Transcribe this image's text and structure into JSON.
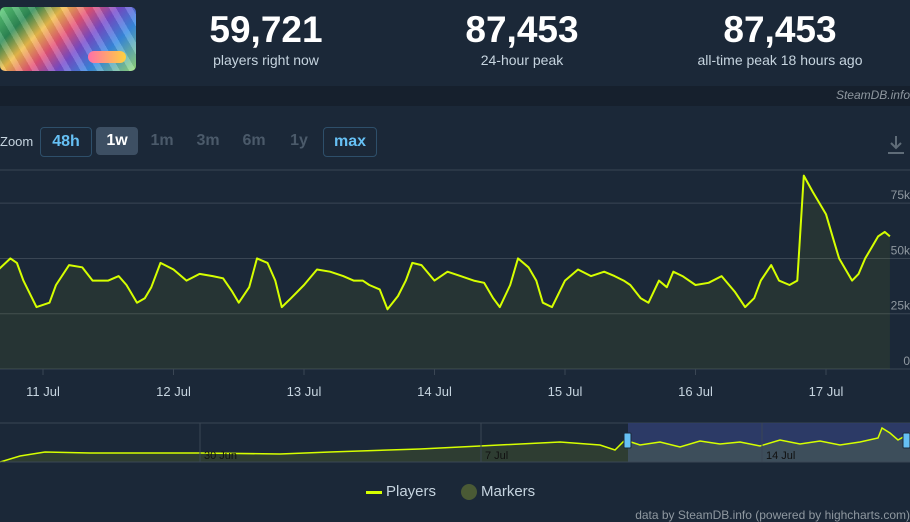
{
  "header": {
    "thumbnail_name": "game-capsule-image",
    "stats": [
      {
        "value": "59,721",
        "label": "players right now"
      },
      {
        "value": "87,453",
        "label": "24-hour peak"
      },
      {
        "value": "87,453",
        "label": "all-time peak 18 hours ago"
      }
    ]
  },
  "credit_top": "SteamDB.info",
  "zoom": {
    "label": "Zoom",
    "buttons": [
      "48h",
      "1w",
      "1m",
      "3m",
      "6m",
      "1y",
      "max"
    ],
    "active": "1w"
  },
  "download_icon": "download-icon",
  "colors": {
    "line": "#d6ff00",
    "grid": "#3a4654",
    "nav_selection": "#2f3c6b"
  },
  "chart_data": {
    "type": "line",
    "ylim": [
      0,
      90000
    ],
    "y_tick_labels": [
      "0",
      "25k",
      "50k",
      "75k"
    ],
    "x_tick_labels": [
      "11 Jul",
      "12 Jul",
      "13 Jul",
      "14 Jul",
      "15 Jul",
      "16 Jul",
      "17 Jul"
    ],
    "series": [
      {
        "name": "Players",
        "x": [
          10.33,
          10.45,
          10.5,
          10.6,
          10.66,
          10.75,
          10.8,
          10.85,
          10.95,
          11.05,
          11.1,
          11.2,
          11.3,
          11.38,
          11.45,
          11.5,
          11.58,
          11.64,
          11.72,
          11.78,
          11.83,
          11.9,
          12.0,
          12.1,
          12.2,
          12.3,
          12.38,
          12.45,
          12.5,
          12.58,
          12.64,
          12.72,
          12.78,
          12.83,
          12.9,
          13.0,
          13.1,
          13.2,
          13.3,
          13.38,
          13.45,
          13.5,
          13.58,
          13.64,
          13.72,
          13.78,
          13.83,
          13.9,
          14.0,
          14.1,
          14.2,
          14.3,
          14.38,
          14.45,
          14.5,
          14.58,
          14.64,
          14.72,
          14.78,
          14.83,
          14.9,
          15.0,
          15.1,
          15.2,
          15.3,
          15.38,
          15.45,
          15.5,
          15.58,
          15.64,
          15.72,
          15.78,
          15.83,
          15.9,
          16.0,
          16.1,
          16.2,
          16.3,
          16.38,
          16.45,
          16.5,
          16.58,
          16.64,
          16.72,
          16.78,
          16.83,
          16.9,
          16.95,
          17.0,
          17.05,
          17.1,
          17.15,
          17.2,
          17.25,
          17.3,
          17.35,
          17.4,
          17.45,
          17.49
        ],
        "values": [
          48000,
          42000,
          40000,
          40000,
          45000,
          50000,
          48000,
          40000,
          28000,
          30000,
          38000,
          47000,
          46000,
          40000,
          40000,
          40000,
          42000,
          38000,
          30000,
          32000,
          37000,
          48000,
          45000,
          40000,
          43000,
          42000,
          41000,
          35000,
          30000,
          37000,
          50000,
          48000,
          40000,
          28000,
          32000,
          38000,
          45000,
          44000,
          42000,
          40000,
          40000,
          38000,
          36000,
          27000,
          33000,
          40000,
          48000,
          47000,
          40000,
          44000,
          42000,
          40000,
          39000,
          32000,
          28000,
          38000,
          50000,
          46000,
          40000,
          30000,
          28000,
          40000,
          45000,
          42000,
          44000,
          42000,
          40000,
          38000,
          32000,
          30000,
          40000,
          37000,
          44000,
          42000,
          38000,
          39000,
          42000,
          35000,
          28000,
          32000,
          40000,
          47000,
          40000,
          38000,
          40000,
          87453,
          80000,
          75000,
          70000,
          60000,
          50000,
          45000,
          40000,
          43000,
          50000,
          55000,
          60000,
          62000,
          60000
        ]
      }
    ],
    "navigator": {
      "x_tick_labels": [
        "30 Jun",
        "7 Jul",
        "14 Jul"
      ]
    },
    "legend": [
      {
        "name": "Players",
        "kind": "line"
      },
      {
        "name": "Markers",
        "kind": "marker"
      }
    ]
  },
  "credit_bottom": "data by SteamDB.info (powered by highcharts.com)"
}
